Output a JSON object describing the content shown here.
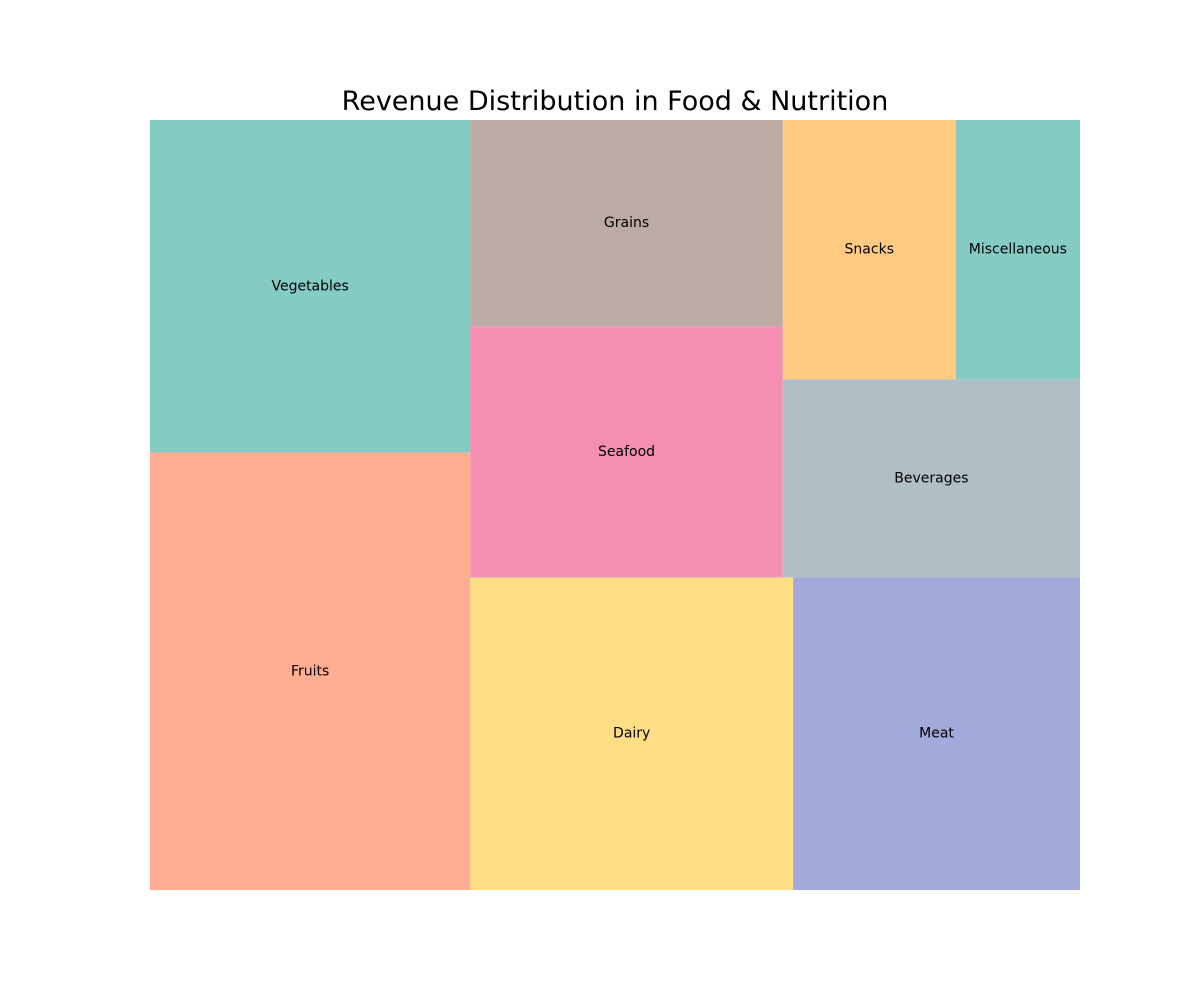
{
  "chart_data": {
    "type": "treemap",
    "title": "Revenue Distribution in Food & Nutrition",
    "items": [
      {
        "label": "Fruits",
        "value": 25,
        "color": "#FFAE92"
      },
      {
        "label": "Vegetables",
        "value": 19,
        "color": "#84CBC4"
      },
      {
        "label": "Dairy",
        "value": 18,
        "color": "#FFDE85"
      },
      {
        "label": "Meat",
        "value": 16,
        "color": "#A2AADB"
      },
      {
        "label": "Seafood",
        "value": 14,
        "color": "#F48FB1"
      },
      {
        "label": "Grains",
        "value": 11.5,
        "color": "#BCABA4"
      },
      {
        "label": "Beverages",
        "value": 10.5,
        "color": "#B0BEC5"
      },
      {
        "label": "Snacks",
        "value": 8,
        "color": "#FFCB80"
      },
      {
        "label": "Miscellaneous",
        "value": 5.75,
        "color": "#84CBC4"
      }
    ]
  }
}
